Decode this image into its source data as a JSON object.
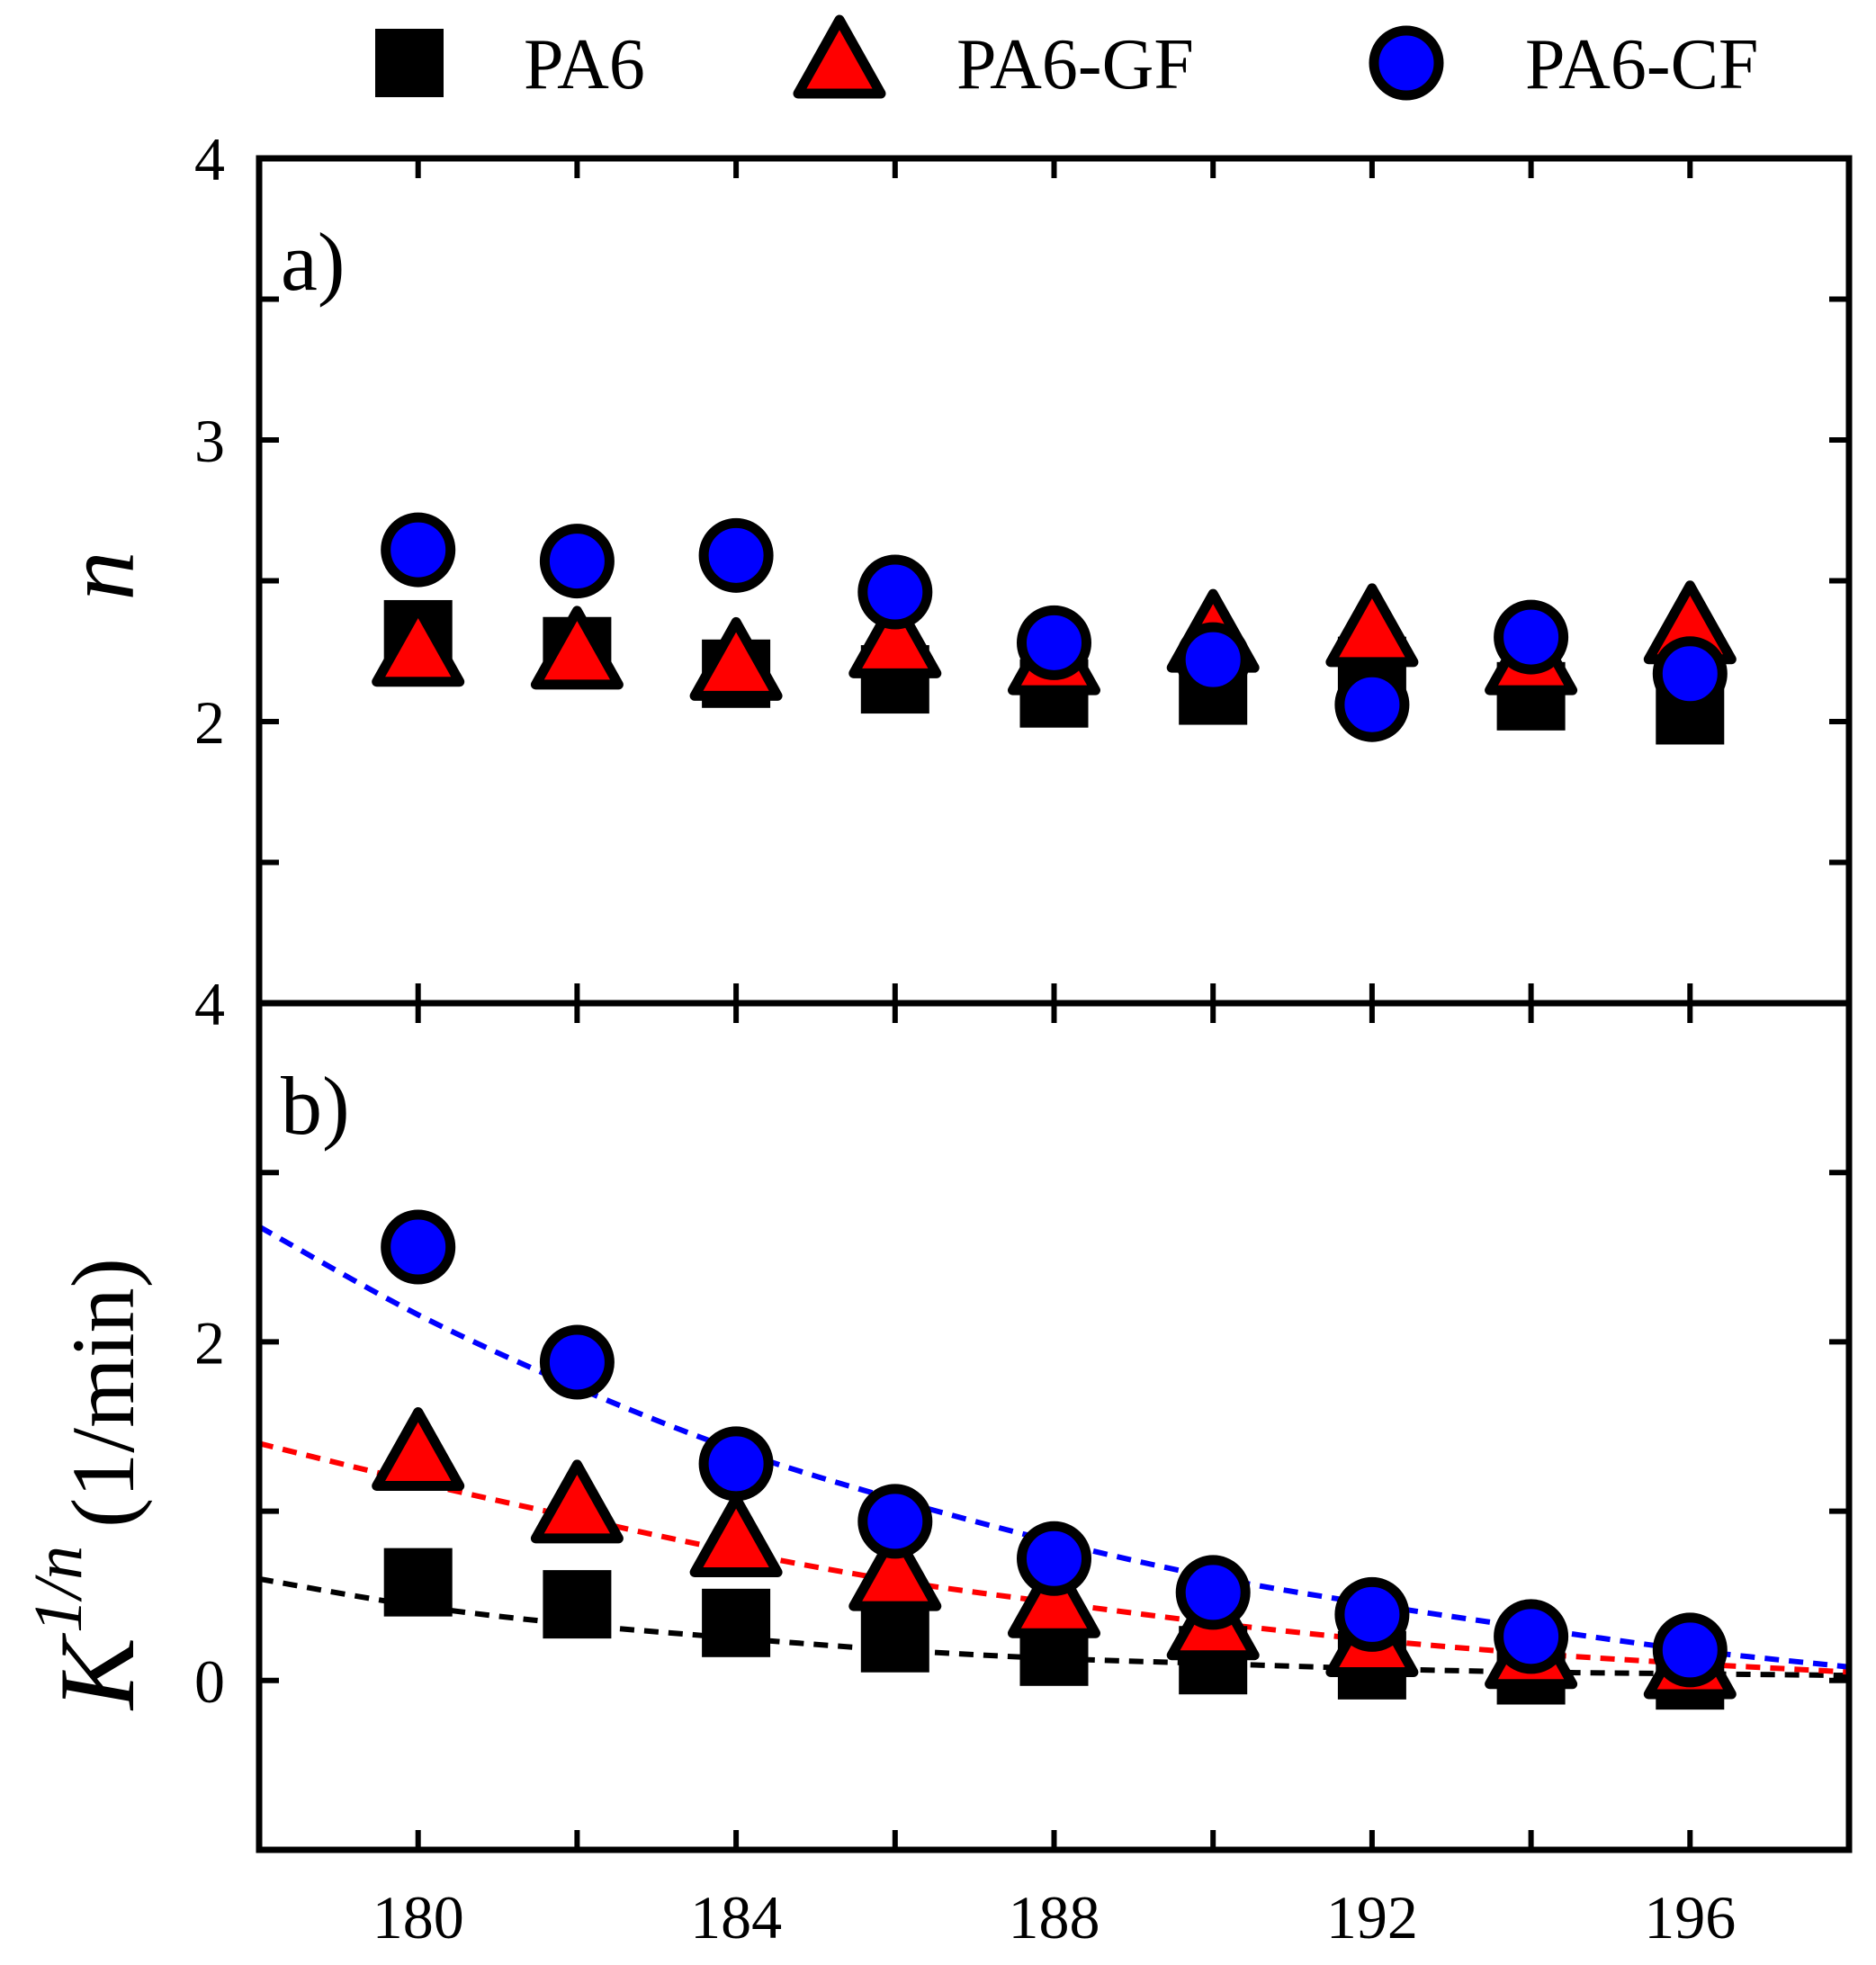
{
  "chart_data": [
    {
      "type": "scatter",
      "panel_label": "a)",
      "ylabel": "n",
      "xlim": [
        178,
        198
      ],
      "ylim": [
        1,
        4
      ],
      "x_ticks": [
        180,
        184,
        188,
        192,
        196
      ],
      "y_ticks": [
        2,
        3,
        4
      ],
      "grid": false,
      "legend_position": "top",
      "x": [
        180,
        182,
        184,
        186,
        188,
        190,
        192,
        194,
        196
      ],
      "series": [
        {
          "name": "PA6",
          "marker": "square",
          "color": "#000000",
          "values": [
            2.31,
            2.25,
            2.17,
            2.15,
            2.1,
            2.11,
            2.18,
            2.09,
            2.04
          ]
        },
        {
          "name": "PA6-GF",
          "marker": "triangle",
          "color": "#ff0000",
          "values": [
            2.25,
            2.24,
            2.2,
            2.28,
            2.22,
            2.3,
            2.32,
            2.22,
            2.33
          ]
        },
        {
          "name": "PA6-CF",
          "marker": "circle",
          "color": "#0000ff",
          "values": [
            2.61,
            2.57,
            2.59,
            2.46,
            2.28,
            2.22,
            2.06,
            2.3,
            2.17
          ]
        }
      ]
    },
    {
      "type": "scatter",
      "panel_label": "b)",
      "ylabel": "K",
      "ylabel_sup": "1/n",
      "ylabel_unit": "(1/min)",
      "xlim": [
        178,
        198
      ],
      "ylim": [
        -1,
        4
      ],
      "x_ticks": [
        180,
        184,
        188,
        192,
        196
      ],
      "y_ticks": [
        0,
        2
      ],
      "top_tick_label": "4",
      "grid": false,
      "x": [
        180,
        182,
        184,
        186,
        188,
        190,
        192,
        194,
        196
      ],
      "series": [
        {
          "name": "PA6",
          "marker": "square",
          "color": "#000000",
          "values": [
            0.58,
            0.45,
            0.34,
            0.25,
            0.17,
            0.12,
            0.09,
            0.06,
            0.03
          ],
          "fit": [
            0.6,
            0.44,
            0.33,
            0.25,
            0.18,
            0.13,
            0.1,
            0.07,
            0.05,
            0.04,
            0.03
          ]
        },
        {
          "name": "PA6-GF",
          "marker": "triangle",
          "color": "#ff0000",
          "values": [
            1.33,
            1.02,
            0.82,
            0.62,
            0.46,
            0.33,
            0.23,
            0.16,
            0.1
          ],
          "fit": [
            1.4,
            1.17,
            0.96,
            0.76,
            0.59,
            0.46,
            0.34,
            0.24,
            0.16,
            0.1,
            0.05
          ]
        },
        {
          "name": "PA6-CF",
          "marker": "circle",
          "color": "#0000ff",
          "values": [
            2.56,
            1.88,
            1.28,
            0.94,
            0.72,
            0.52,
            0.39,
            0.26,
            0.18
          ],
          "fit": [
            2.68,
            2.16,
            1.73,
            1.36,
            1.07,
            0.82,
            0.61,
            0.45,
            0.31,
            0.18,
            0.08
          ]
        }
      ],
      "fit_x": [
        178,
        180,
        182,
        184,
        186,
        188,
        190,
        192,
        194,
        196,
        198
      ]
    }
  ]
}
